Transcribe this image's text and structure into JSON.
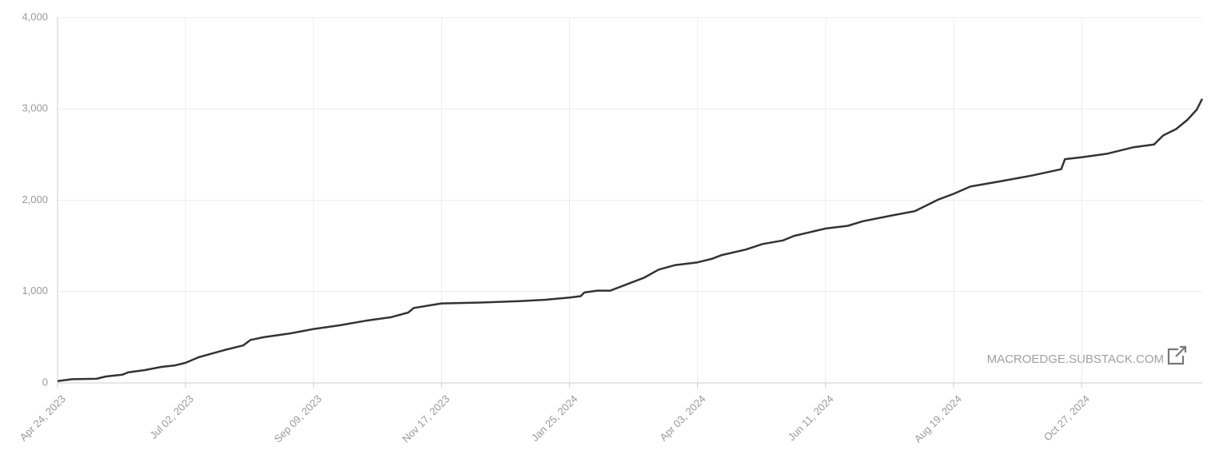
{
  "chart_data": {
    "type": "line",
    "x": [
      "2023-04-24",
      "2023-05-02",
      "2023-05-15",
      "2023-05-20",
      "2023-05-29",
      "2023-06-01",
      "2023-06-10",
      "2023-06-19",
      "2023-06-26",
      "2023-07-02",
      "2023-07-09",
      "2023-07-16",
      "2023-07-23",
      "2023-08-02",
      "2023-08-06",
      "2023-08-13",
      "2023-08-27",
      "2023-09-09",
      "2023-09-23",
      "2023-10-07",
      "2023-10-21",
      "2023-10-30",
      "2023-11-02",
      "2023-11-11",
      "2023-11-17",
      "2023-12-08",
      "2023-12-29",
      "2024-01-12",
      "2024-01-25",
      "2024-01-31",
      "2024-02-02",
      "2024-02-09",
      "2024-02-16",
      "2024-02-25",
      "2024-03-05",
      "2024-03-13",
      "2024-03-22",
      "2024-04-03",
      "2024-04-11",
      "2024-04-16",
      "2024-04-29",
      "2024-05-08",
      "2024-05-19",
      "2024-05-25",
      "2024-06-11",
      "2024-06-23",
      "2024-07-01",
      "2024-07-16",
      "2024-07-29",
      "2024-08-11",
      "2024-08-19",
      "2024-08-28",
      "2024-09-14",
      "2024-09-30",
      "2024-10-16",
      "2024-10-18",
      "2024-10-27",
      "2024-11-10",
      "2024-11-24",
      "2024-12-05",
      "2024-12-10",
      "2024-12-17",
      "2024-12-23",
      "2024-12-28",
      "2024-12-31"
    ],
    "values": [
      20,
      40,
      45,
      70,
      90,
      115,
      140,
      175,
      190,
      220,
      280,
      320,
      360,
      410,
      470,
      500,
      540,
      590,
      630,
      680,
      720,
      770,
      820,
      850,
      870,
      880,
      895,
      910,
      935,
      950,
      990,
      1010,
      1010,
      1080,
      1150,
      1240,
      1290,
      1320,
      1360,
      1400,
      1460,
      1520,
      1560,
      1610,
      1690,
      1720,
      1770,
      1830,
      1880,
      2010,
      2070,
      2150,
      2210,
      2270,
      2340,
      2450,
      2470,
      2510,
      2580,
      2610,
      2710,
      2780,
      2880,
      2990,
      3110
    ],
    "color": "#333333",
    "xlim": [
      "2023-04-24",
      "2024-12-31"
    ],
    "xticks": [
      {
        "value": "2023-04-24",
        "label": "Apr 24, 2023"
      },
      {
        "value": "2023-07-02",
        "label": "Jul 02, 2023"
      },
      {
        "value": "2023-09-09",
        "label": "Sep 09, 2023"
      },
      {
        "value": "2023-11-17",
        "label": "Nov 17, 2023"
      },
      {
        "value": "2024-01-25",
        "label": "Jan 25, 2024"
      },
      {
        "value": "2024-04-03",
        "label": "Apr 03, 2024"
      },
      {
        "value": "2024-06-11",
        "label": "Jun 11, 2024"
      },
      {
        "value": "2024-08-19",
        "label": "Aug 19, 2024"
      },
      {
        "value": "2024-10-27",
        "label": "Oct 27, 2024"
      }
    ],
    "ylim": [
      0,
      4000
    ],
    "yticks": [
      0,
      {
        "value": 1000,
        "label": "1,000"
      },
      {
        "value": 2000,
        "label": "2,000"
      },
      {
        "value": 3000,
        "label": "3,000"
      },
      {
        "value": 4000,
        "label": "4,000"
      }
    ],
    "grid": true,
    "watermark": "MACROEDGE.SUBSTACK.COM"
  }
}
